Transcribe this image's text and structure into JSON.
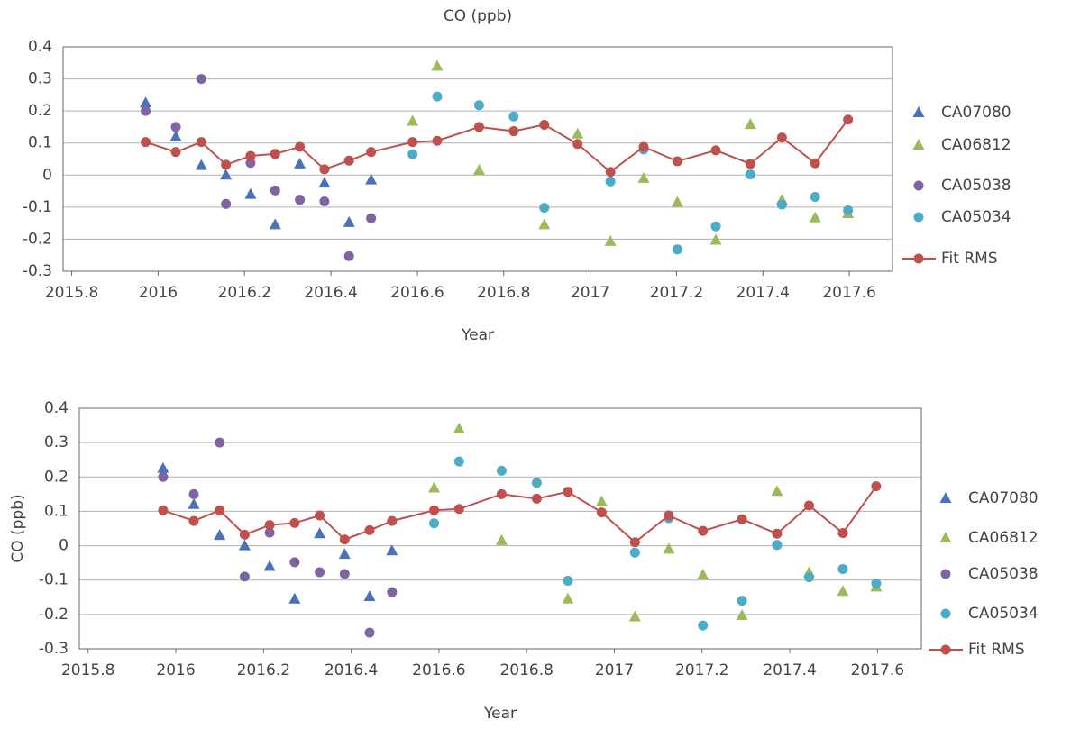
{
  "chart_data": [
    {
      "type": "scatter",
      "title": "CO (ppb)",
      "x_label": "Year",
      "xlim": [
        2015.78,
        2017.7
      ],
      "xticks": [
        2015.8,
        2016,
        2016.2,
        2016.4,
        2016.6,
        2016.8,
        2017,
        2017.2,
        2017.4,
        2017.6
      ],
      "ylim": [
        -0.3,
        0.4
      ],
      "yticks": [
        -0.3,
        -0.2,
        -0.1,
        0,
        0.1,
        0.2,
        0.3,
        0.4
      ],
      "grid": true,
      "legend": "right",
      "series": [
        {
          "name": "CA07080",
          "color": "#4a72b8",
          "marker": "triangle",
          "x": [
            2015.971,
            2016.041,
            2016.1,
            2016.157,
            2016.214,
            2016.271,
            2016.328,
            2016.385,
            2016.442,
            2016.493
          ],
          "values": [
            0.225,
            0.12,
            0.03,
            0.0,
            -0.06,
            -0.155,
            0.035,
            -0.025,
            -0.148,
            -0.015
          ]
        },
        {
          "name": "CA06812",
          "color": "#9bbb59",
          "marker": "triangle",
          "x": [
            2016.589,
            2016.646,
            2016.743,
            2016.894,
            2016.971,
            2017.047,
            2017.124,
            2017.202,
            2017.291,
            2017.371,
            2017.444,
            2017.521,
            2017.597
          ],
          "values": [
            0.168,
            0.34,
            0.015,
            -0.155,
            0.128,
            -0.207,
            -0.01,
            -0.085,
            -0.203,
            0.158,
            -0.078,
            -0.133,
            -0.12
          ]
        },
        {
          "name": "CA05038",
          "color": "#8064a2",
          "marker": "circle",
          "x": [
            2015.971,
            2016.041,
            2016.1,
            2016.157,
            2016.214,
            2016.271,
            2016.328,
            2016.385,
            2016.442,
            2016.493
          ],
          "values": [
            0.2,
            0.15,
            0.3,
            -0.09,
            0.038,
            -0.048,
            -0.077,
            -0.082,
            -0.253,
            -0.135
          ]
        },
        {
          "name": "CA05034",
          "color": "#4bacc6",
          "marker": "circle",
          "x": [
            2016.589,
            2016.646,
            2016.743,
            2016.823,
            2016.894,
            2017.047,
            2017.124,
            2017.202,
            2017.291,
            2017.371,
            2017.444,
            2017.521,
            2017.597
          ],
          "values": [
            0.065,
            0.245,
            0.218,
            0.183,
            -0.102,
            -0.02,
            0.08,
            -0.232,
            -0.16,
            0.002,
            -0.092,
            -0.068,
            -0.11
          ]
        },
        {
          "name": "Fit RMS",
          "color": "#c0504d",
          "marker": "circle",
          "line": true,
          "x": [
            2015.971,
            2016.041,
            2016.1,
            2016.157,
            2016.214,
            2016.271,
            2016.328,
            2016.385,
            2016.442,
            2016.493,
            2016.589,
            2016.646,
            2016.743,
            2016.823,
            2016.894,
            2016.971,
            2017.047,
            2017.124,
            2017.202,
            2017.291,
            2017.371,
            2017.444,
            2017.521,
            2017.597
          ],
          "values": [
            0.103,
            0.072,
            0.103,
            0.032,
            0.06,
            0.066,
            0.088,
            0.018,
            0.045,
            0.072,
            0.103,
            0.107,
            0.15,
            0.137,
            0.157,
            0.097,
            0.01,
            0.088,
            0.043,
            0.077,
            0.035,
            0.117,
            0.037,
            0.173
          ]
        }
      ]
    },
    {
      "type": "scatter",
      "x_label": "Year",
      "y_label": "CO (ppb)",
      "xlim": [
        2015.78,
        2017.7
      ],
      "xticks": [
        2015.8,
        2016,
        2016.2,
        2016.4,
        2016.6,
        2016.8,
        2017,
        2017.2,
        2017.4,
        2017.6
      ],
      "ylim": [
        -0.3,
        0.4
      ],
      "yticks": [
        -0.3,
        -0.2,
        -0.1,
        0,
        0.1,
        0.2,
        0.3,
        0.4
      ],
      "grid": true,
      "legend": "right",
      "series": [
        {
          "name": "CA07080",
          "color": "#4a72b8",
          "marker": "triangle",
          "x": [
            2015.971,
            2016.041,
            2016.1,
            2016.157,
            2016.214,
            2016.271,
            2016.328,
            2016.385,
            2016.442,
            2016.493
          ],
          "values": [
            0.225,
            0.12,
            0.03,
            0.0,
            -0.06,
            -0.155,
            0.035,
            -0.025,
            -0.148,
            -0.015
          ]
        },
        {
          "name": "CA06812",
          "color": "#9bbb59",
          "marker": "triangle",
          "x": [
            2016.589,
            2016.646,
            2016.743,
            2016.894,
            2016.971,
            2017.047,
            2017.124,
            2017.202,
            2017.291,
            2017.371,
            2017.444,
            2017.521,
            2017.597
          ],
          "values": [
            0.168,
            0.34,
            0.015,
            -0.155,
            0.128,
            -0.207,
            -0.01,
            -0.085,
            -0.203,
            0.158,
            -0.078,
            -0.133,
            -0.12
          ]
        },
        {
          "name": "CA05038",
          "color": "#8064a2",
          "marker": "circle",
          "x": [
            2015.971,
            2016.041,
            2016.1,
            2016.157,
            2016.214,
            2016.271,
            2016.328,
            2016.385,
            2016.442,
            2016.493
          ],
          "values": [
            0.2,
            0.15,
            0.3,
            -0.09,
            0.038,
            -0.048,
            -0.077,
            -0.082,
            -0.253,
            -0.135
          ]
        },
        {
          "name": "CA05034",
          "color": "#4bacc6",
          "marker": "circle",
          "x": [
            2016.589,
            2016.646,
            2016.743,
            2016.823,
            2016.894,
            2017.047,
            2017.124,
            2017.202,
            2017.291,
            2017.371,
            2017.444,
            2017.521,
            2017.597
          ],
          "values": [
            0.065,
            0.245,
            0.218,
            0.183,
            -0.102,
            -0.02,
            0.08,
            -0.232,
            -0.16,
            0.002,
            -0.092,
            -0.068,
            -0.11
          ]
        },
        {
          "name": "Fit RMS",
          "color": "#c0504d",
          "marker": "circle",
          "line": true,
          "x": [
            2015.971,
            2016.041,
            2016.1,
            2016.157,
            2016.214,
            2016.271,
            2016.328,
            2016.385,
            2016.442,
            2016.493,
            2016.589,
            2016.646,
            2016.743,
            2016.823,
            2016.894,
            2016.971,
            2017.047,
            2017.124,
            2017.202,
            2017.291,
            2017.371,
            2017.444,
            2017.521,
            2017.597
          ],
          "values": [
            0.103,
            0.072,
            0.103,
            0.032,
            0.06,
            0.066,
            0.088,
            0.018,
            0.045,
            0.072,
            0.103,
            0.107,
            0.15,
            0.137,
            0.157,
            0.097,
            0.01,
            0.088,
            0.043,
            0.077,
            0.035,
            0.117,
            0.037,
            0.173
          ]
        }
      ]
    }
  ]
}
